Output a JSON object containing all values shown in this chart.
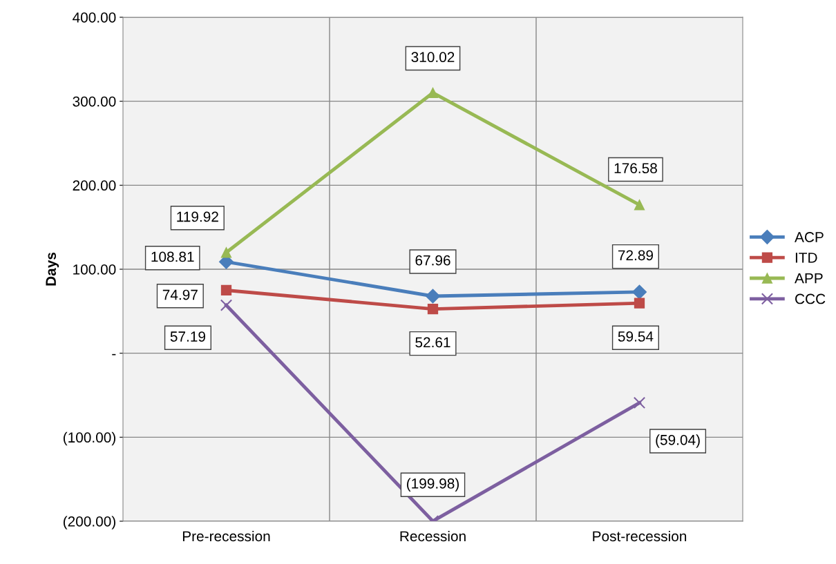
{
  "chart_data": {
    "type": "line",
    "ylabel": "Days",
    "categories": [
      "Pre-recession",
      "Recession",
      "Post-recession"
    ],
    "series": [
      {
        "name": "ACP",
        "color": "#4a7ebb",
        "marker": "diamond",
        "values": [
          108.81,
          67.96,
          72.89
        ],
        "value_labels": [
          "108.81",
          "67.96",
          "72.89"
        ]
      },
      {
        "name": "ITD",
        "color": "#be4b48",
        "marker": "square",
        "values": [
          74.97,
          52.61,
          59.54
        ],
        "value_labels": [
          "74.97",
          "52.61",
          "59.54"
        ]
      },
      {
        "name": "APP",
        "color": "#98b954",
        "marker": "triangle",
        "values": [
          119.92,
          310.02,
          176.58
        ],
        "value_labels": [
          "119.92",
          "310.02",
          "176.58"
        ]
      },
      {
        "name": "CCC",
        "color": "#7d5fa0",
        "marker": "cross",
        "values": [
          57.19,
          -199.98,
          -59.04
        ],
        "value_labels": [
          "57.19",
          "(199.98)",
          "(59.04)"
        ]
      }
    ],
    "ylim": [
      -200,
      400
    ],
    "yticks": [
      {
        "value": -200,
        "label": "(200.00)"
      },
      {
        "value": -100,
        "label": "(100.00)"
      },
      {
        "value": 0,
        "label": "-"
      },
      {
        "value": 100,
        "label": "100.00"
      },
      {
        "value": 200,
        "label": "200.00"
      },
      {
        "value": 300,
        "label": "300.00"
      },
      {
        "value": 400,
        "label": "400.00"
      }
    ],
    "grid": true,
    "legend": "right",
    "line_style": "solid"
  }
}
